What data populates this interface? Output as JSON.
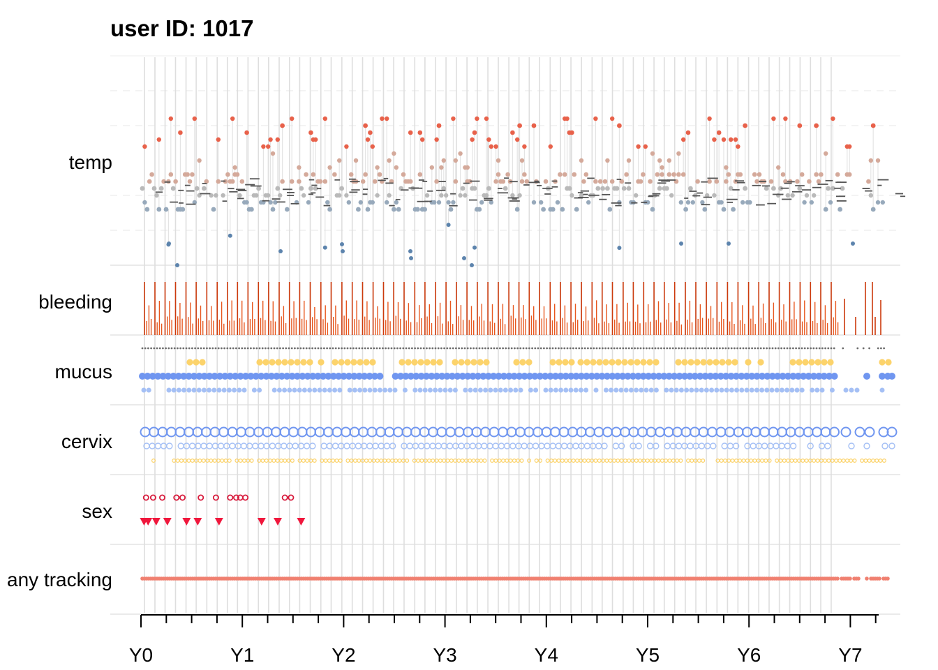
{
  "chart_data": {
    "type": "scatter",
    "title": "user ID:  1017",
    "xlabel": "",
    "ylabel": "",
    "x_ticks": [
      "Y0",
      "Y1",
      "Y2",
      "Y3",
      "Y4",
      "Y5",
      "Y6",
      "Y7"
    ],
    "x_range": [
      0,
      7.4
    ],
    "rows": [
      "temp",
      "bleeding",
      "mucus",
      "cervix",
      "sex",
      "any tracking"
    ],
    "approx_cycle_count": 71,
    "cycle_length_days": 37.5,
    "tracking_end_year": 7.37,
    "series": [
      {
        "row": "sex",
        "marker": "triangle-down",
        "color": "#f0173c",
        "x": [
          0.03,
          0.07,
          0.15,
          0.26,
          0.45,
          0.56,
          0.77,
          1.19,
          1.35,
          1.58
        ]
      },
      {
        "row": "sex",
        "marker": "open-circle",
        "color": "#d81b3c",
        "x": [
          0.05,
          0.12,
          0.21,
          0.35,
          0.41,
          0.59,
          0.74,
          0.88,
          0.94,
          0.98,
          1.03,
          1.42,
          1.48
        ]
      }
    ],
    "grid": true,
    "colors": {
      "temp_high": "#e8614a",
      "temp_mid": "#d4a99a",
      "temp_neutral": "#b9b9b9",
      "temp_low": "#97a9bb",
      "temp_very_low": "#5d84ad",
      "bleeding": "#cc3a0c",
      "mucus_egg_white": "#fcd36b",
      "mucus_creamy": "#7096f0",
      "mucus_sticky": "#a5c0f5",
      "mucus_dry": "#6b6b6b",
      "cervix_open": "#7096f0",
      "cervix_mid": "#a5c0f5",
      "cervix_closed": "#fcd36b",
      "sex_protected": "#d81b3c",
      "sex_unprotected": "#f0173c",
      "tracking": "#f08070"
    }
  }
}
